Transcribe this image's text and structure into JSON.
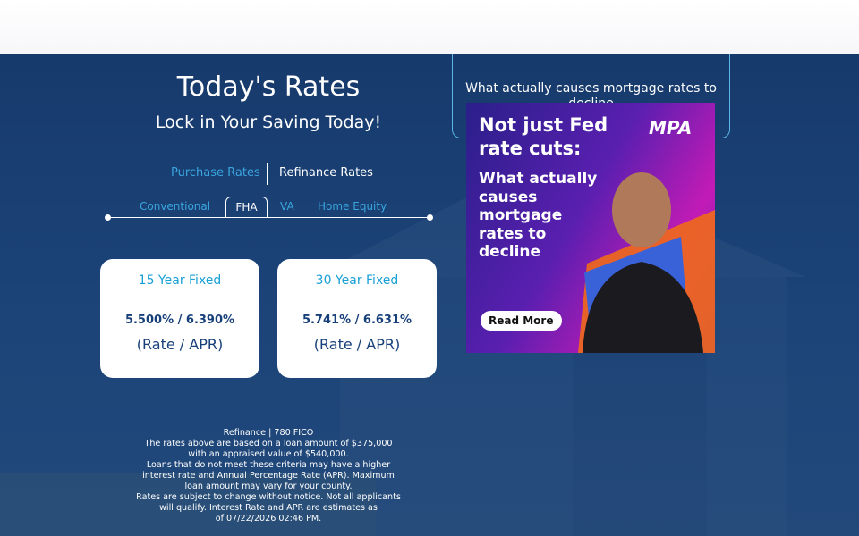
{
  "rates": {
    "title": "Today's Rates",
    "subtitle": "Lock in Your Saving Today!",
    "tabs": [
      "Purchase Rates",
      "Refinance Rates"
    ],
    "loan_types": [
      "Conventional",
      "FHA",
      "VA",
      "Home Equity"
    ],
    "cards": [
      {
        "term": "15 Year Fixed",
        "rate": "5.500% / 6.390%",
        "label": "(Rate / APR)"
      },
      {
        "term": "30 Year Fixed",
        "rate": "5.741% / 6.631%",
        "label": "(Rate / APR)"
      }
    ],
    "disclaimer": [
      "Refinance | 780 FICO",
      "The rates above are based on a loan amount of $375,000",
      "with an appraised value of $540,000.",
      "Loans that do not meet these criteria may have a higher",
      "interest rate and Annual Percentage Rate (APR). Maximum",
      "loan amount may vary for your county.",
      "Rates are subject to change without notice. Not all applicants",
      "will qualify. Interest Rate and APR are estimates as",
      "of 07/22/2026 02:46 PM."
    ]
  },
  "news": {
    "headline": "What actually causes mortgage rates to decline",
    "ad": {
      "headline": [
        "Not just Fed",
        "rate cuts:"
      ],
      "subhead": [
        "What actually",
        "causes",
        "mortgage",
        "rates to",
        "decline"
      ],
      "brand": "MPA",
      "button": "Read More"
    }
  }
}
